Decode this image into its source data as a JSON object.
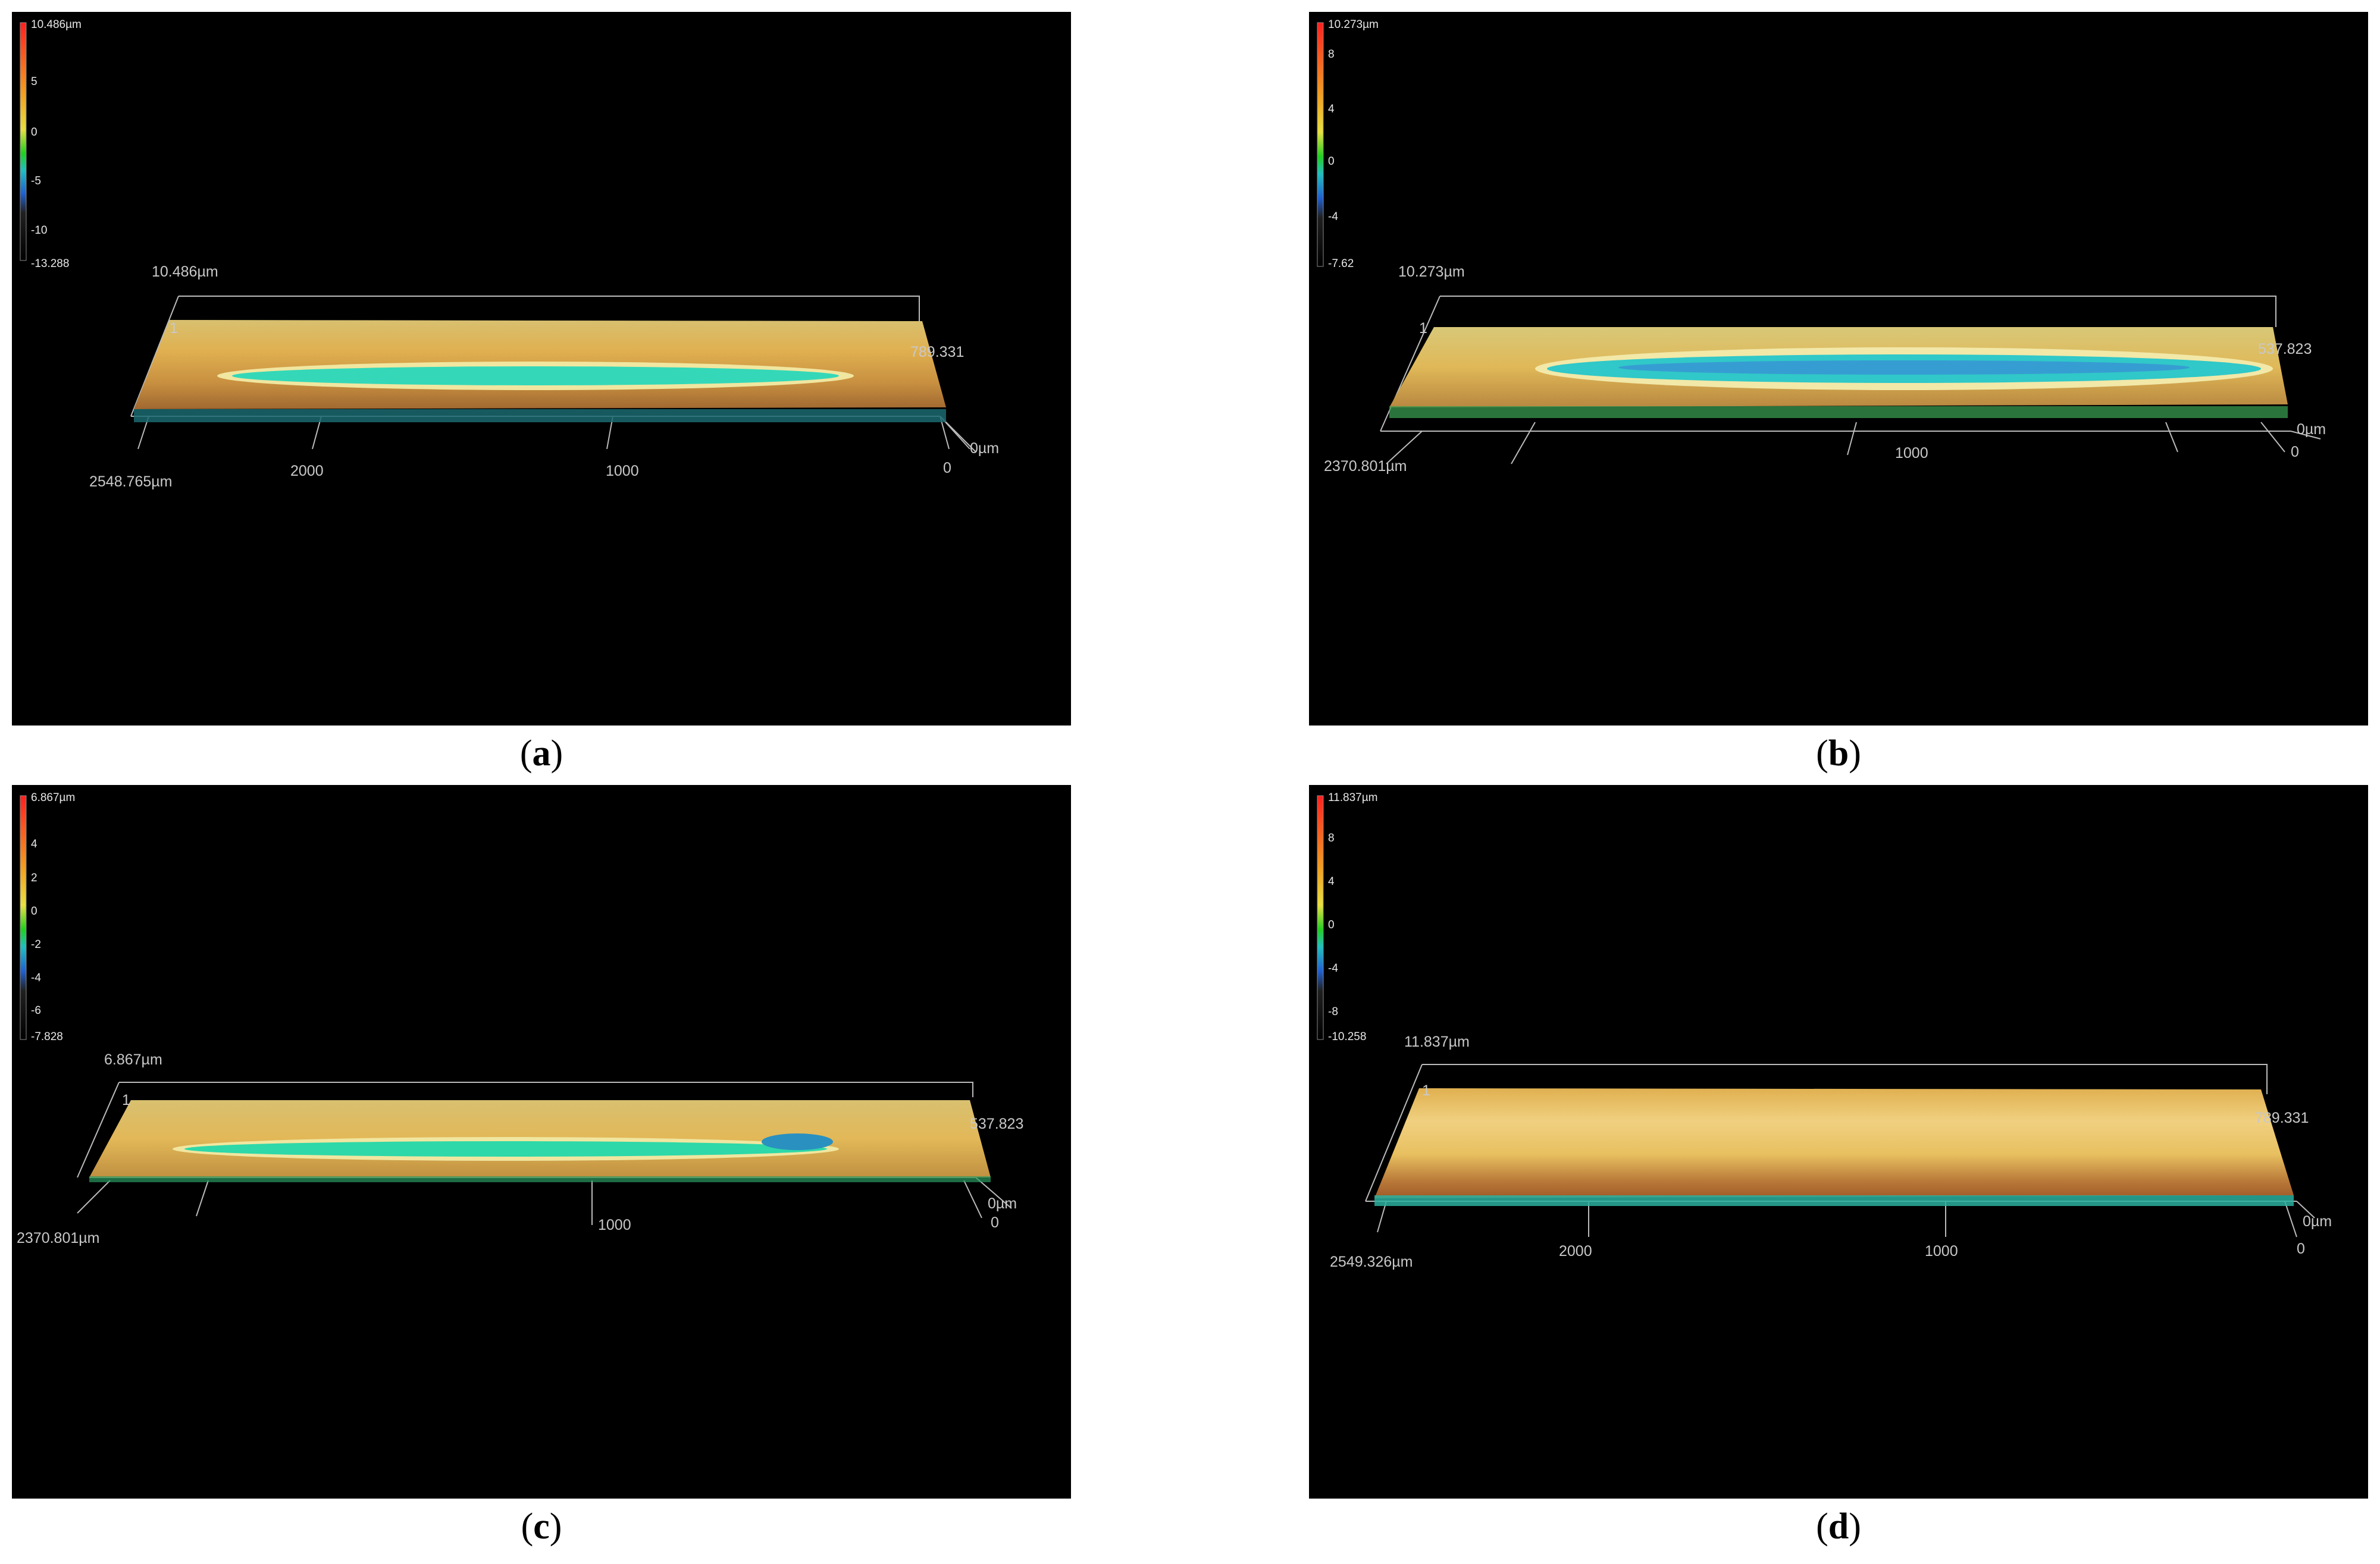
{
  "colormap": [
    "#ff2020",
    "#f2a020",
    "#e8e040",
    "#20d020",
    "#20c0c0",
    "#2060d0",
    "#202020"
  ],
  "panels": [
    {
      "id": "a",
      "caption_letter": "a",
      "colorbar": {
        "top": "10.486µm",
        "ticks": [
          "5",
          "0",
          "-5",
          "-10"
        ],
        "bottom": "-13.288"
      },
      "axes": {
        "z_max": "10.486µm",
        "z_mark": "1",
        "y_max": "789.331",
        "x_origin": "0µm",
        "x_max": "2548.765µm",
        "x_ticks": [
          "2000",
          "1000",
          "0"
        ]
      },
      "surface": {
        "track_color": "#34d8b8"
      }
    },
    {
      "id": "b",
      "caption_letter": "b",
      "colorbar": {
        "top": "10.273µm",
        "ticks": [
          "8",
          "4",
          "0",
          "-4"
        ],
        "bottom": "-7.62"
      },
      "axes": {
        "z_max": "10.273µm",
        "z_mark": "1",
        "y_max": "537.823",
        "x_origin": "0µm",
        "x_max": "2370.801µm",
        "x_ticks": [
          "1000",
          "0"
        ]
      },
      "surface": {
        "track_color": "#30c8c8"
      }
    },
    {
      "id": "c",
      "caption_letter": "c",
      "colorbar": {
        "top": "6.867µm",
        "ticks": [
          "4",
          "2",
          "0",
          "-2",
          "-4",
          "-6"
        ],
        "bottom": "-7.828"
      },
      "axes": {
        "z_max": "6.867µm",
        "z_mark": "1",
        "y_max": "537.823",
        "x_origin": "0µm",
        "x_max": "2370.801µm",
        "x_ticks": [
          "1000",
          "0"
        ]
      },
      "surface": {
        "track_color": "#2ed8a8"
      }
    },
    {
      "id": "d",
      "caption_letter": "d",
      "colorbar": {
        "top": "11.837µm",
        "ticks": [
          "8",
          "4",
          "0",
          "-4",
          "-8"
        ],
        "bottom": "-10.258"
      },
      "axes": {
        "z_max": "11.837µm",
        "z_mark": "1",
        "y_max": "789.331",
        "x_origin": "0µm",
        "x_max": "2549.326µm",
        "x_ticks": [
          "2000",
          "1000",
          "0"
        ]
      },
      "surface": {
        "track_color": ""
      }
    }
  ]
}
